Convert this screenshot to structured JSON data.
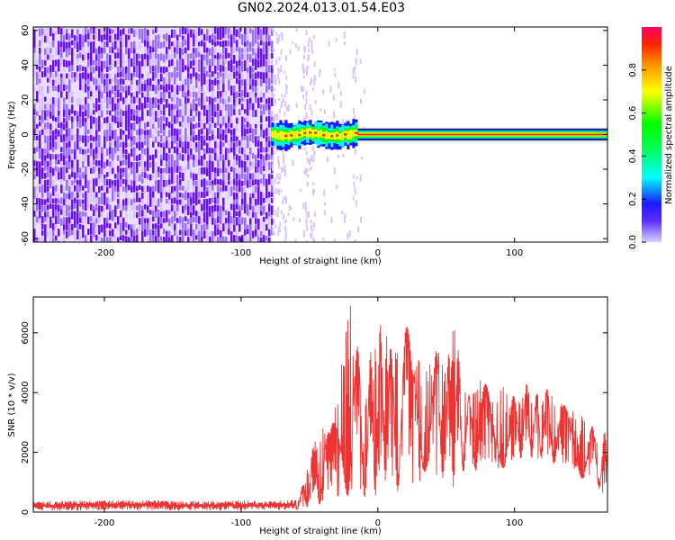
{
  "title": "GN02.2024.013.01.54.E03",
  "colors": {
    "spectrogram_noise": "#6a0dfa",
    "spectrogram_noise_light": "#d9c4ff",
    "snr_line": "#ee3333",
    "frame": "#000000"
  },
  "chart_data": [
    {
      "type": "heatmap",
      "title": "GN02.2024.013.01.54.E03",
      "xlabel": "Height of straight line (km)",
      "ylabel": "Frequency (Hz)",
      "xlim": [
        -252,
        168
      ],
      "ylim": [
        -62,
        62
      ],
      "xticks": [
        -200,
        -100,
        0,
        100
      ],
      "yticks": [
        60,
        40,
        20,
        0,
        -20,
        -40,
        -60
      ],
      "colorbar": {
        "label": "Normalized spectral amplitude",
        "range": [
          0.0,
          1.0
        ],
        "ticks": [
          0.0,
          0.2,
          0.4,
          0.6,
          0.8
        ],
        "colormap": [
          "#d8d0ff",
          "#4400ff",
          "#0022ff",
          "#00ffff",
          "#00ff00",
          "#ffff00",
          "#ff8800",
          "#ff0000",
          "#ff0066"
        ]
      },
      "features": [
        {
          "name": "broadband_noise",
          "x_range": [
            -252,
            -78
          ],
          "freq_range": [
            -62,
            62
          ],
          "amplitude": 0.12
        },
        {
          "name": "sparse_noise",
          "x_range": [
            -78,
            -10
          ],
          "freq_range": [
            -62,
            62
          ],
          "amplitude": 0.05
        },
        {
          "name": "tone_onset",
          "x_range": [
            -78,
            -15
          ],
          "freq_center": 0,
          "freq_halfwidth": 3,
          "amplitude": 0.9
        },
        {
          "name": "tone",
          "x_range": [
            -15,
            168
          ],
          "freq_center": 0,
          "freq_halfwidth": 1.5,
          "amplitude": 1.0
        }
      ]
    },
    {
      "type": "line",
      "xlabel": "Height of straight line (km)",
      "ylabel": "SNR (10 * v/v)",
      "xlim": [
        -252,
        168
      ],
      "ylim": [
        0,
        7200
      ],
      "xticks": [
        -200,
        -100,
        0,
        100
      ],
      "yticks": [
        0,
        2000,
        4000,
        6000
      ],
      "series": [
        {
          "color": "#ee3333",
          "x": [
            -252,
            -220,
            -180,
            -140,
            -100,
            -80,
            -60,
            -55,
            -50,
            -45,
            -40,
            -35,
            -30,
            -25,
            -20,
            -18,
            -15,
            -12,
            -10,
            -5,
            0,
            5,
            10,
            15,
            20,
            25,
            30,
            35,
            40,
            45,
            50,
            55,
            60,
            65,
            70,
            75,
            80,
            85,
            90,
            95,
            100,
            105,
            110,
            115,
            120,
            125,
            130,
            135,
            140,
            145,
            150,
            155,
            160,
            165,
            168
          ],
          "upper": [
            350,
            380,
            400,
            360,
            380,
            380,
            400,
            900,
            1800,
            2500,
            3200,
            2600,
            4000,
            5800,
            7100,
            6500,
            5600,
            4800,
            3500,
            5500,
            6200,
            6400,
            5400,
            6500,
            6600,
            5400,
            6700,
            5200,
            5000,
            5700,
            4700,
            6400,
            5100,
            3900,
            4000,
            4600,
            4200,
            3800,
            4300,
            4600,
            3800,
            4000,
            4400,
            3900,
            4200,
            4100,
            3800,
            3600,
            3500,
            3300,
            3200,
            2900,
            2800,
            2700,
            2600
          ],
          "lower": [
            50,
            60,
            80,
            60,
            70,
            80,
            80,
            100,
            200,
            300,
            200,
            300,
            400,
            600,
            500,
            700,
            300,
            200,
            500,
            600,
            500,
            1100,
            800,
            700,
            1600,
            900,
            800,
            1400,
            1700,
            900,
            1400,
            800,
            1600,
            1100,
            1300,
            1600,
            1500,
            1200,
            1400,
            1600,
            1700,
            1800,
            1900,
            1700,
            1800,
            1700,
            1600,
            1500,
            1400,
            1300,
            1100,
            1000,
            900,
            600,
            400
          ]
        }
      ]
    }
  ]
}
